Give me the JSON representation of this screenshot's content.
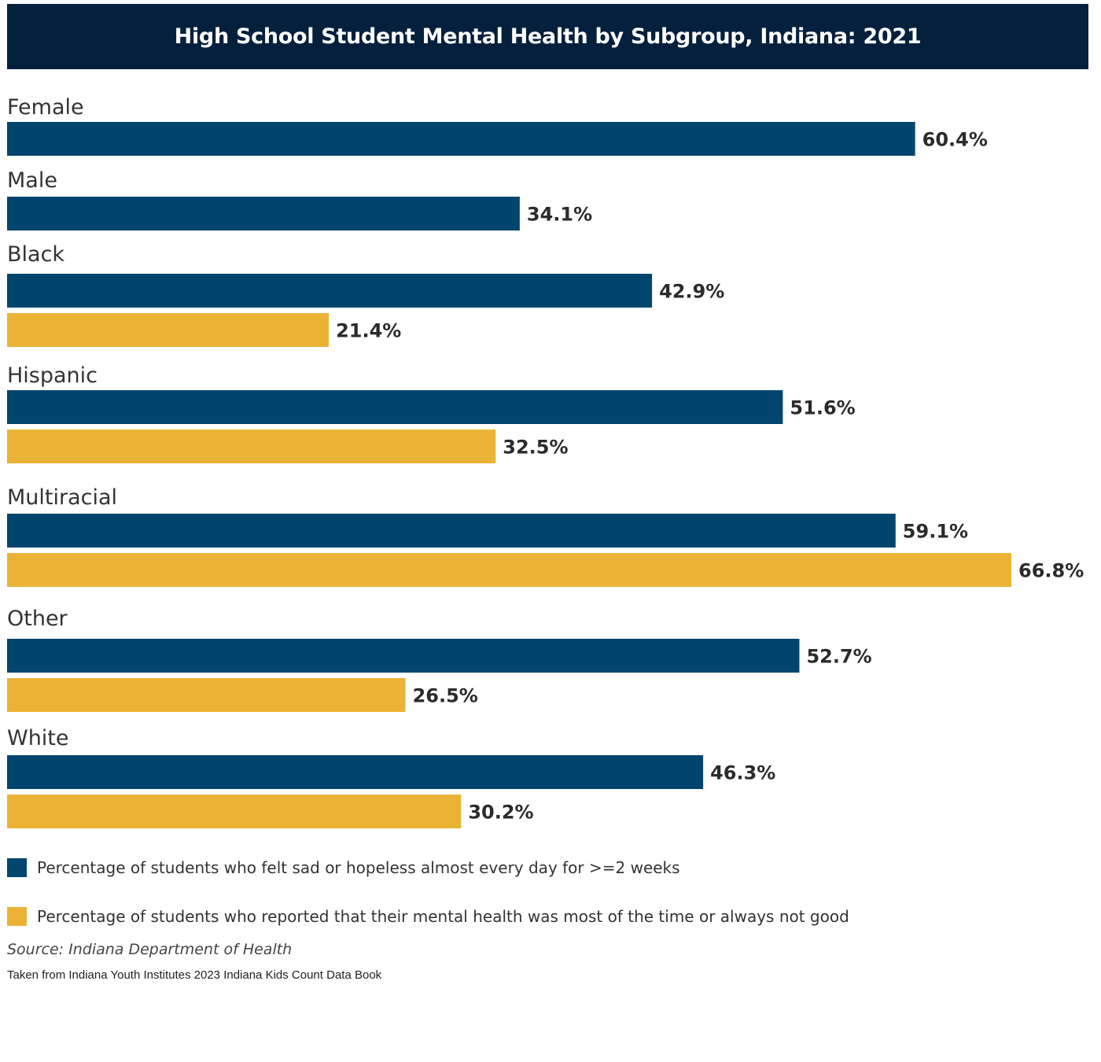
{
  "chart_data": {
    "type": "bar",
    "orientation": "horizontal",
    "title": "High School Student Mental Health by Subgroup, Indiana: 2021",
    "categories": [
      "Female",
      "Male",
      "Black",
      "Hispanic",
      "Multiracial",
      "Other",
      "White"
    ],
    "series": [
      {
        "name": "Percentage of students who felt sad or hopeless almost every day for >=2 weeks",
        "color": "#02456e",
        "values": [
          60.4,
          34.1,
          42.9,
          51.6,
          59.1,
          52.7,
          46.3
        ],
        "labels": [
          "60.4%",
          "34.1%",
          "42.9%",
          "51.6%",
          "59.1%",
          "52.7%",
          "46.3%"
        ]
      },
      {
        "name": "Percentage of students who reported that their mental health was most of the time or always not good",
        "color": "#eab336",
        "values": [
          null,
          null,
          21.4,
          32.5,
          66.8,
          26.5,
          30.2
        ],
        "labels": [
          null,
          null,
          "21.4%",
          "32.5%",
          "66.8%",
          "26.5%",
          "30.2%"
        ]
      }
    ],
    "xlim": [
      0,
      66.8
    ],
    "grid": false,
    "legend_position": "bottom"
  },
  "legend": {
    "blue_label": "Percentage of students who felt sad or hopeless almost every day for >=2 weeks",
    "gold_label": "Percentage of students who reported that their mental health was most of the time or always not good"
  },
  "footer": {
    "source": "Source: Indiana Department of Health",
    "credit": "Taken from Indiana Youth Institutes 2023 Indiana Kids Count Data Book"
  }
}
